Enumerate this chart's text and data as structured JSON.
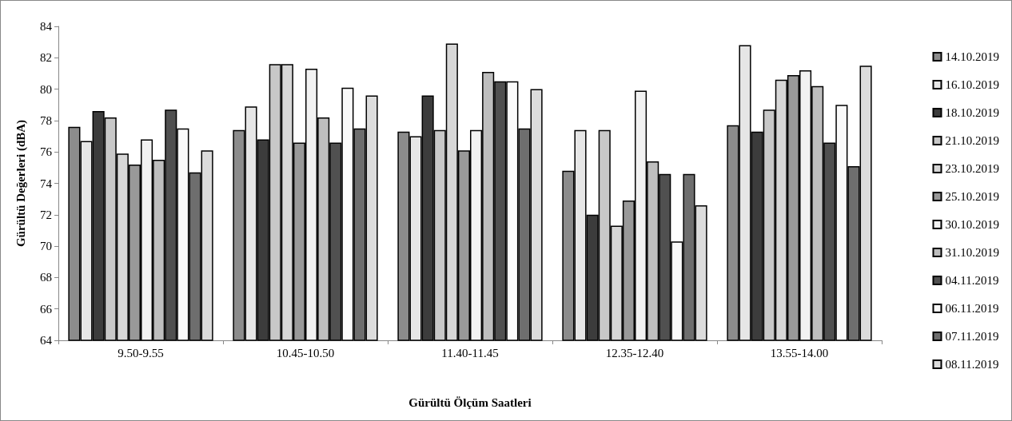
{
  "chart_data": {
    "type": "bar",
    "xlabel": "Gürültü Ölçüm Saatleri",
    "ylabel": "Gürültü Değerleri (dBA)",
    "categories": [
      "9.50-9.55",
      "10.45-10.50",
      "11.40-11.45",
      "12.35-12.40",
      "13.55-14.00"
    ],
    "ylim": [
      64,
      84
    ],
    "yticks": [
      64,
      66,
      68,
      70,
      72,
      74,
      76,
      78,
      80,
      82,
      84
    ],
    "grid": false,
    "legend": "right",
    "series": [
      {
        "name": "14.10.2019",
        "color": "#8c8c8c",
        "values": [
          77.6,
          77.4,
          77.3,
          74.8,
          77.7
        ]
      },
      {
        "name": "16.10.2019",
        "color": "#e6e6e6",
        "values": [
          76.7,
          78.9,
          77.0,
          77.4,
          82.8
        ]
      },
      {
        "name": "18.10.2019",
        "color": "#3c3c3c",
        "values": [
          78.6,
          76.8,
          79.6,
          72.0,
          77.3
        ]
      },
      {
        "name": "21.10.2019",
        "color": "#c8c8c8",
        "values": [
          78.2,
          81.6,
          77.4,
          77.4,
          78.7
        ]
      },
      {
        "name": "23.10.2019",
        "color": "#d7d7d7",
        "values": [
          75.9,
          81.6,
          82.9,
          71.3,
          80.6
        ]
      },
      {
        "name": "25.10.2019",
        "color": "#999999",
        "values": [
          75.2,
          76.6,
          76.1,
          72.9,
          80.9
        ]
      },
      {
        "name": "30.10.2019",
        "color": "#f2f2f2",
        "values": [
          76.8,
          81.3,
          77.4,
          79.9,
          81.2
        ]
      },
      {
        "name": "31.10.2019",
        "color": "#bebebe",
        "values": [
          75.5,
          78.2,
          81.1,
          75.4,
          80.2
        ]
      },
      {
        "name": "04.11.2019",
        "color": "#505050",
        "values": [
          78.7,
          76.6,
          80.5,
          74.6,
          76.6
        ]
      },
      {
        "name": "06.11.2019",
        "color": "#fafafa",
        "values": [
          77.5,
          80.1,
          80.5,
          70.3,
          79.0
        ]
      },
      {
        "name": "07.11.2019",
        "color": "#6e6e6e",
        "values": [
          74.7,
          77.5,
          77.5,
          74.6,
          75.1
        ]
      },
      {
        "name": "08.11.2019",
        "color": "#dcdcdc",
        "values": [
          76.1,
          79.6,
          80.0,
          72.6,
          81.5
        ]
      }
    ]
  }
}
